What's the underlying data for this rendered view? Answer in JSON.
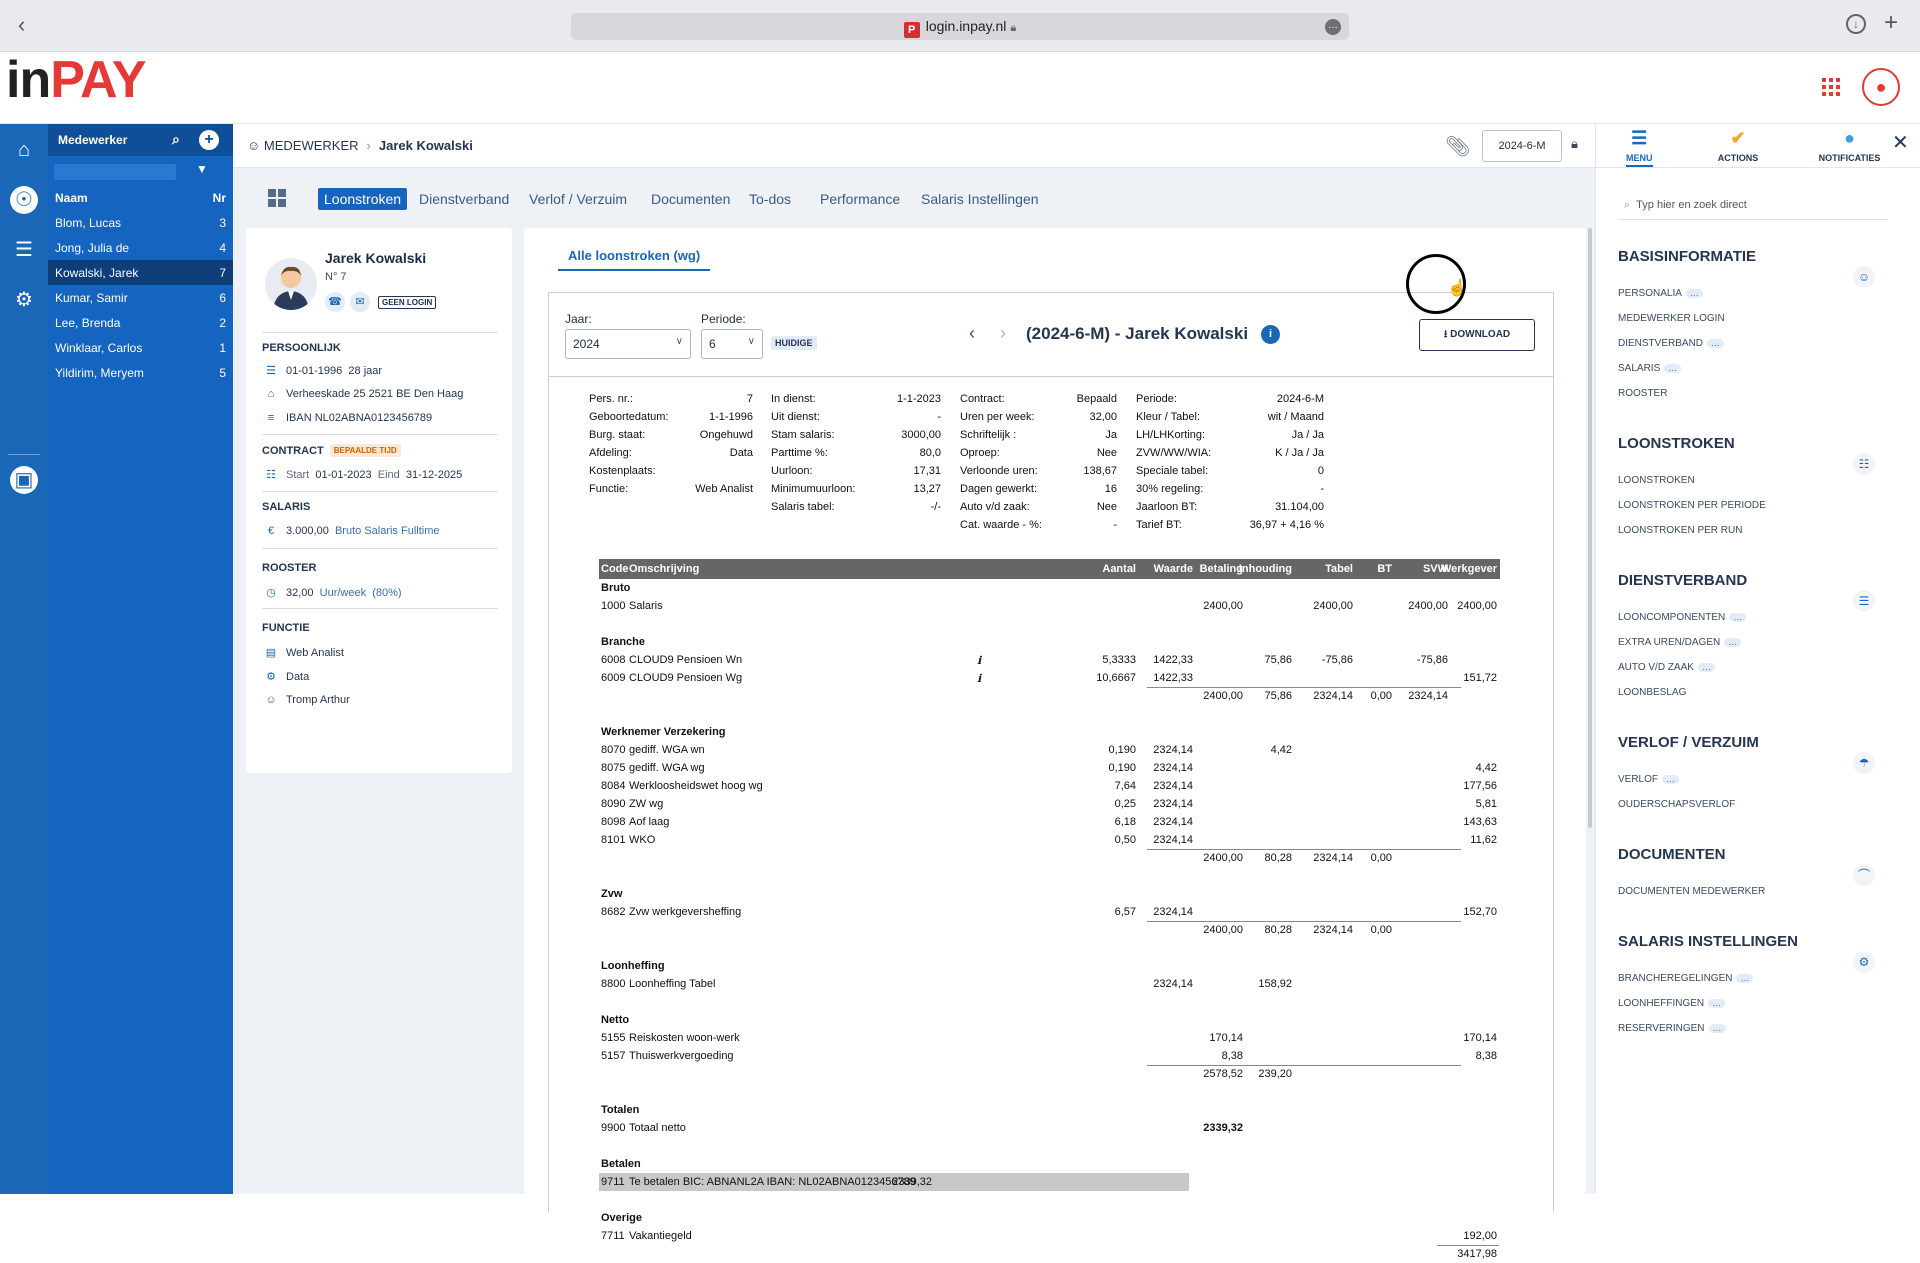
{
  "browser": {
    "url": "login.inpay.nl",
    "favicon": "P"
  },
  "logo": {
    "part1": "in",
    "part2": "PAY"
  },
  "sidebar": {
    "title": "Medewerker",
    "col_name": "Naam",
    "col_nr": "Nr",
    "employees": [
      {
        "name": "Blom, Lucas",
        "nr": "3"
      },
      {
        "name": "Jong, Julia de",
        "nr": "4"
      },
      {
        "name": "Kowalski, Jarek",
        "nr": "7",
        "selected": true
      },
      {
        "name": "Kumar, Samir",
        "nr": "6"
      },
      {
        "name": "Lee, Brenda",
        "nr": "2"
      },
      {
        "name": "Winklaar, Carlos",
        "nr": "1"
      },
      {
        "name": "Yildirim, Meryem",
        "nr": "5"
      }
    ]
  },
  "breadcrumb": {
    "section": "MEDEWERKER",
    "current": "Jarek Kowalski"
  },
  "header": {
    "period": "2024-6-M"
  },
  "tabs": [
    "Loonstroken",
    "Dienstverband",
    "Verlof / Verzuim",
    "Documenten",
    "To-dos",
    "Performance",
    "Salaris Instellingen"
  ],
  "profile": {
    "name": "Jarek Kowalski",
    "nr": "N° 7",
    "login_badge": "GEEN LOGIN",
    "persoonlijk_title": "PERSOONLIJK",
    "birth": "01-01-1996",
    "age": "28 jaar",
    "address": "Verheeskade 25 2521 BE Den Haag",
    "iban": "IBAN NL02ABNA0123456789",
    "contract_title": "CONTRACT",
    "contract_tag": "BEPAALDE TIJD",
    "start_label": "Start",
    "start": "01-01-2023",
    "end_label": "Eind",
    "end": "31-12-2025",
    "salaris_title": "SALARIS",
    "salary": "3.000,00",
    "salary_desc": "Bruto Salaris Fulltime",
    "rooster_title": "ROOSTER",
    "hours": "32,00",
    "hours_unit": "Uur/week",
    "hours_pct": "(80%)",
    "functie_title": "FUNCTIE",
    "function": "Web Analist",
    "department": "Data",
    "manager": "Tromp Arthur"
  },
  "panel": {
    "subtab": "Alle loonstroken (wg)",
    "year_label": "Jaar:",
    "year": "2024",
    "period_label": "Periode:",
    "period": "6",
    "current_badge": "HUIDIGE",
    "title": "(2024-6-M) - Jarek Kowalski",
    "download": "DOWNLOAD"
  },
  "meta": [
    [
      [
        "Pers. nr.:",
        "7"
      ],
      [
        "Geboortedatum:",
        "1-1-1996"
      ],
      [
        "Burg. staat:",
        "Ongehuwd"
      ],
      [
        "Afdeling:",
        "Data"
      ],
      [
        "Kostenplaats:",
        ""
      ],
      [
        "Functie:",
        "Web Analist"
      ]
    ],
    [
      [
        "In dienst:",
        "1-1-2023"
      ],
      [
        "Uit dienst:",
        "-"
      ],
      [
        "Stam salaris:",
        "3000,00"
      ],
      [
        "Parttime %:",
        "80,0"
      ],
      [
        "Uurloon:",
        "17,31"
      ],
      [
        "Minimumuurloon:",
        "13,27"
      ],
      [
        "Salaris tabel:",
        "-/-"
      ]
    ],
    [
      [
        "Contract:",
        "Bepaald"
      ],
      [
        "Uren per week:",
        "32,00"
      ],
      [
        "Schriftelijk :",
        "Ja"
      ],
      [
        "Oproep:",
        "Nee"
      ],
      [
        "Verloonde uren:",
        "138,67"
      ],
      [
        "Dagen gewerkt:",
        "16"
      ],
      [
        "Auto v/d zaak:",
        "Nee"
      ],
      [
        "Cat. waarde - %:",
        "-"
      ]
    ],
    [
      [
        "Periode:",
        "2024-6-M"
      ],
      [
        "Kleur / Tabel:",
        "wit / Maand"
      ],
      [
        "LH/LHKorting:",
        "Ja / Ja"
      ],
      [
        "ZVW/WW/WIA:",
        "K / Ja / Ja"
      ],
      [
        "Speciale tabel:",
        "0"
      ],
      [
        "30% regeling:",
        "-"
      ],
      [
        "Jaarloon BT:",
        "31.104,00"
      ],
      [
        "Tarief BT:",
        "36,97 + 4,16 %"
      ]
    ]
  ],
  "columns": [
    "Code",
    "Omschrijving",
    "Aantal",
    "Waarde",
    "Betaling",
    "Inhouding",
    "Tabel",
    "BT",
    "SVW",
    "Werkgever"
  ],
  "rows": [
    {
      "type": "group",
      "label": "Bruto"
    },
    {
      "type": "line",
      "v": [
        "1000",
        "Salaris",
        "",
        "",
        "2400,00",
        "",
        "2400,00",
        "",
        "2400,00",
        "2400,00"
      ]
    },
    {
      "type": "gap"
    },
    {
      "type": "group",
      "label": "Branche"
    },
    {
      "type": "line",
      "info": true,
      "v": [
        "6008",
        "CLOUD9 Pensioen Wn",
        "5,3333",
        "1422,33",
        "",
        "75,86",
        "-75,86",
        "",
        "-75,86",
        ""
      ]
    },
    {
      "type": "line",
      "info": true,
      "v": [
        "6009",
        "CLOUD9 Pensioen Wg",
        "10,6667",
        "1422,33",
        "",
        "",
        "",
        "",
        "",
        "151,72"
      ]
    },
    {
      "type": "sum",
      "v": [
        "",
        "",
        "",
        "",
        "2400,00",
        "75,86",
        "2324,14",
        "0,00",
        "2324,14",
        ""
      ]
    },
    {
      "type": "gap"
    },
    {
      "type": "group",
      "label": "Werknemer Verzekering"
    },
    {
      "type": "line",
      "v": [
        "8070",
        "gediff. WGA wn",
        "0,190",
        "2324,14",
        "",
        "4,42",
        "",
        "",
        "",
        ""
      ]
    },
    {
      "type": "line",
      "v": [
        "8075",
        "gediff. WGA wg",
        "0,190",
        "2324,14",
        "",
        "",
        "",
        "",
        "",
        "4,42"
      ]
    },
    {
      "type": "line",
      "v": [
        "8084",
        "Werkloosheidswet hoog wg",
        "7,64",
        "2324,14",
        "",
        "",
        "",
        "",
        "",
        "177,56"
      ]
    },
    {
      "type": "line",
      "v": [
        "8090",
        "ZW wg",
        "0,25",
        "2324,14",
        "",
        "",
        "",
        "",
        "",
        "5,81"
      ]
    },
    {
      "type": "line",
      "v": [
        "8098",
        "Aof laag",
        "6,18",
        "2324,14",
        "",
        "",
        "",
        "",
        "",
        "143,63"
      ]
    },
    {
      "type": "line",
      "v": [
        "8101",
        "WKO",
        "0,50",
        "2324,14",
        "",
        "",
        "",
        "",
        "",
        "11,62"
      ]
    },
    {
      "type": "sum",
      "v": [
        "",
        "",
        "",
        "",
        "2400,00",
        "80,28",
        "2324,14",
        "0,00",
        "",
        ""
      ]
    },
    {
      "type": "gap"
    },
    {
      "type": "group",
      "label": "Zvw"
    },
    {
      "type": "line",
      "v": [
        "8682",
        "Zvw werkgeversheffing",
        "6,57",
        "2324,14",
        "",
        "",
        "",
        "",
        "",
        "152,70"
      ]
    },
    {
      "type": "sum",
      "v": [
        "",
        "",
        "",
        "",
        "2400,00",
        "80,28",
        "2324,14",
        "0,00",
        "",
        ""
      ]
    },
    {
      "type": "gap"
    },
    {
      "type": "group",
      "label": "Loonheffing"
    },
    {
      "type": "line",
      "v": [
        "8800",
        "Loonheffing Tabel",
        "",
        "2324,14",
        "",
        "158,92",
        "",
        "",
        "",
        ""
      ]
    },
    {
      "type": "gap"
    },
    {
      "type": "group",
      "label": "Netto"
    },
    {
      "type": "line",
      "v": [
        "5155",
        "Reiskosten woon-werk",
        "",
        "",
        "170,14",
        "",
        "",
        "",
        "",
        "170,14"
      ]
    },
    {
      "type": "line",
      "v": [
        "5157",
        "Thuiswerkvergoeding",
        "",
        "",
        "8,38",
        "",
        "",
        "",
        "",
        "8,38"
      ]
    },
    {
      "type": "sum",
      "v": [
        "",
        "",
        "",
        "",
        "2578,52",
        "239,20",
        "",
        "",
        "",
        ""
      ]
    },
    {
      "type": "gap"
    },
    {
      "type": "group",
      "label": "Totalen"
    },
    {
      "type": "line",
      "bold4": true,
      "v": [
        "9900",
        "Totaal netto",
        "",
        "",
        "2339,32",
        "",
        "",
        "",
        "",
        ""
      ]
    },
    {
      "type": "gap"
    },
    {
      "type": "group",
      "label": "Betalen"
    },
    {
      "type": "line",
      "hl": true,
      "v": [
        "9711",
        "Te betalen BIC: ABNANL2A IBAN: NL02ABNA0123456789",
        "",
        "",
        "2339,32",
        "",
        "",
        "",
        "",
        ""
      ]
    },
    {
      "type": "gap"
    },
    {
      "type": "group",
      "label": "Overige"
    },
    {
      "type": "line",
      "v": [
        "7711",
        "Vakantiegeld",
        "",
        "",
        "",
        "",
        "",
        "",
        "",
        "192,00"
      ]
    },
    {
      "type": "sum",
      "v": [
        "",
        "",
        "",
        "",
        "",
        "",
        "",
        "",
        "",
        "3417,98"
      ]
    }
  ],
  "rightpanel": {
    "menu": "MENU",
    "actions": "ACTIONS",
    "notifications": "NOTIFICATIES",
    "search_placeholder": "Typ hier en zoek direct",
    "sections": [
      {
        "title": "BASISINFORMATIE",
        "icon": "person-icon",
        "items": [
          {
            "label": "PERSONALIA",
            "dots": true
          },
          {
            "label": "MEDEWERKER LOGIN"
          },
          {
            "label": "DIENSTVERBAND",
            "dots": true
          },
          {
            "label": "SALARIS",
            "dots": true
          },
          {
            "label": "ROOSTER"
          }
        ]
      },
      {
        "title": "LOONSTROKEN",
        "icon": "payslip-icon",
        "items": [
          {
            "label": "LOONSTROKEN"
          },
          {
            "label": "LOONSTROKEN PER PERIODE"
          },
          {
            "label": "LOONSTROKEN PER RUN"
          }
        ]
      },
      {
        "title": "DIENSTVERBAND",
        "icon": "clipboard-icon",
        "items": [
          {
            "label": "LOONCOMPONENTEN",
            "dots": true
          },
          {
            "label": "EXTRA UREN/DAGEN",
            "dots": true
          },
          {
            "label": "AUTO V/D ZAAK",
            "dots": true
          },
          {
            "label": "LOONBESLAG"
          }
        ]
      },
      {
        "title": "VERLOF / VERZUIM",
        "icon": "umbrella-icon",
        "items": [
          {
            "label": "VERLOF",
            "dots": true
          },
          {
            "label": "OUDERSCHAPSVERLOF"
          }
        ]
      },
      {
        "title": "DOCUMENTEN",
        "icon": "paperclip-icon",
        "items": [
          {
            "label": "DOCUMENTEN MEDEWERKER"
          }
        ]
      },
      {
        "title": "SALARIS INSTELLINGEN",
        "icon": "gear-icon",
        "items": [
          {
            "label": "BRANCHEREGELINGEN",
            "dots": true
          },
          {
            "label": "LOONHEFFINGEN",
            "dots": true
          },
          {
            "label": "RESERVERINGEN",
            "dots": true
          }
        ]
      }
    ]
  }
}
